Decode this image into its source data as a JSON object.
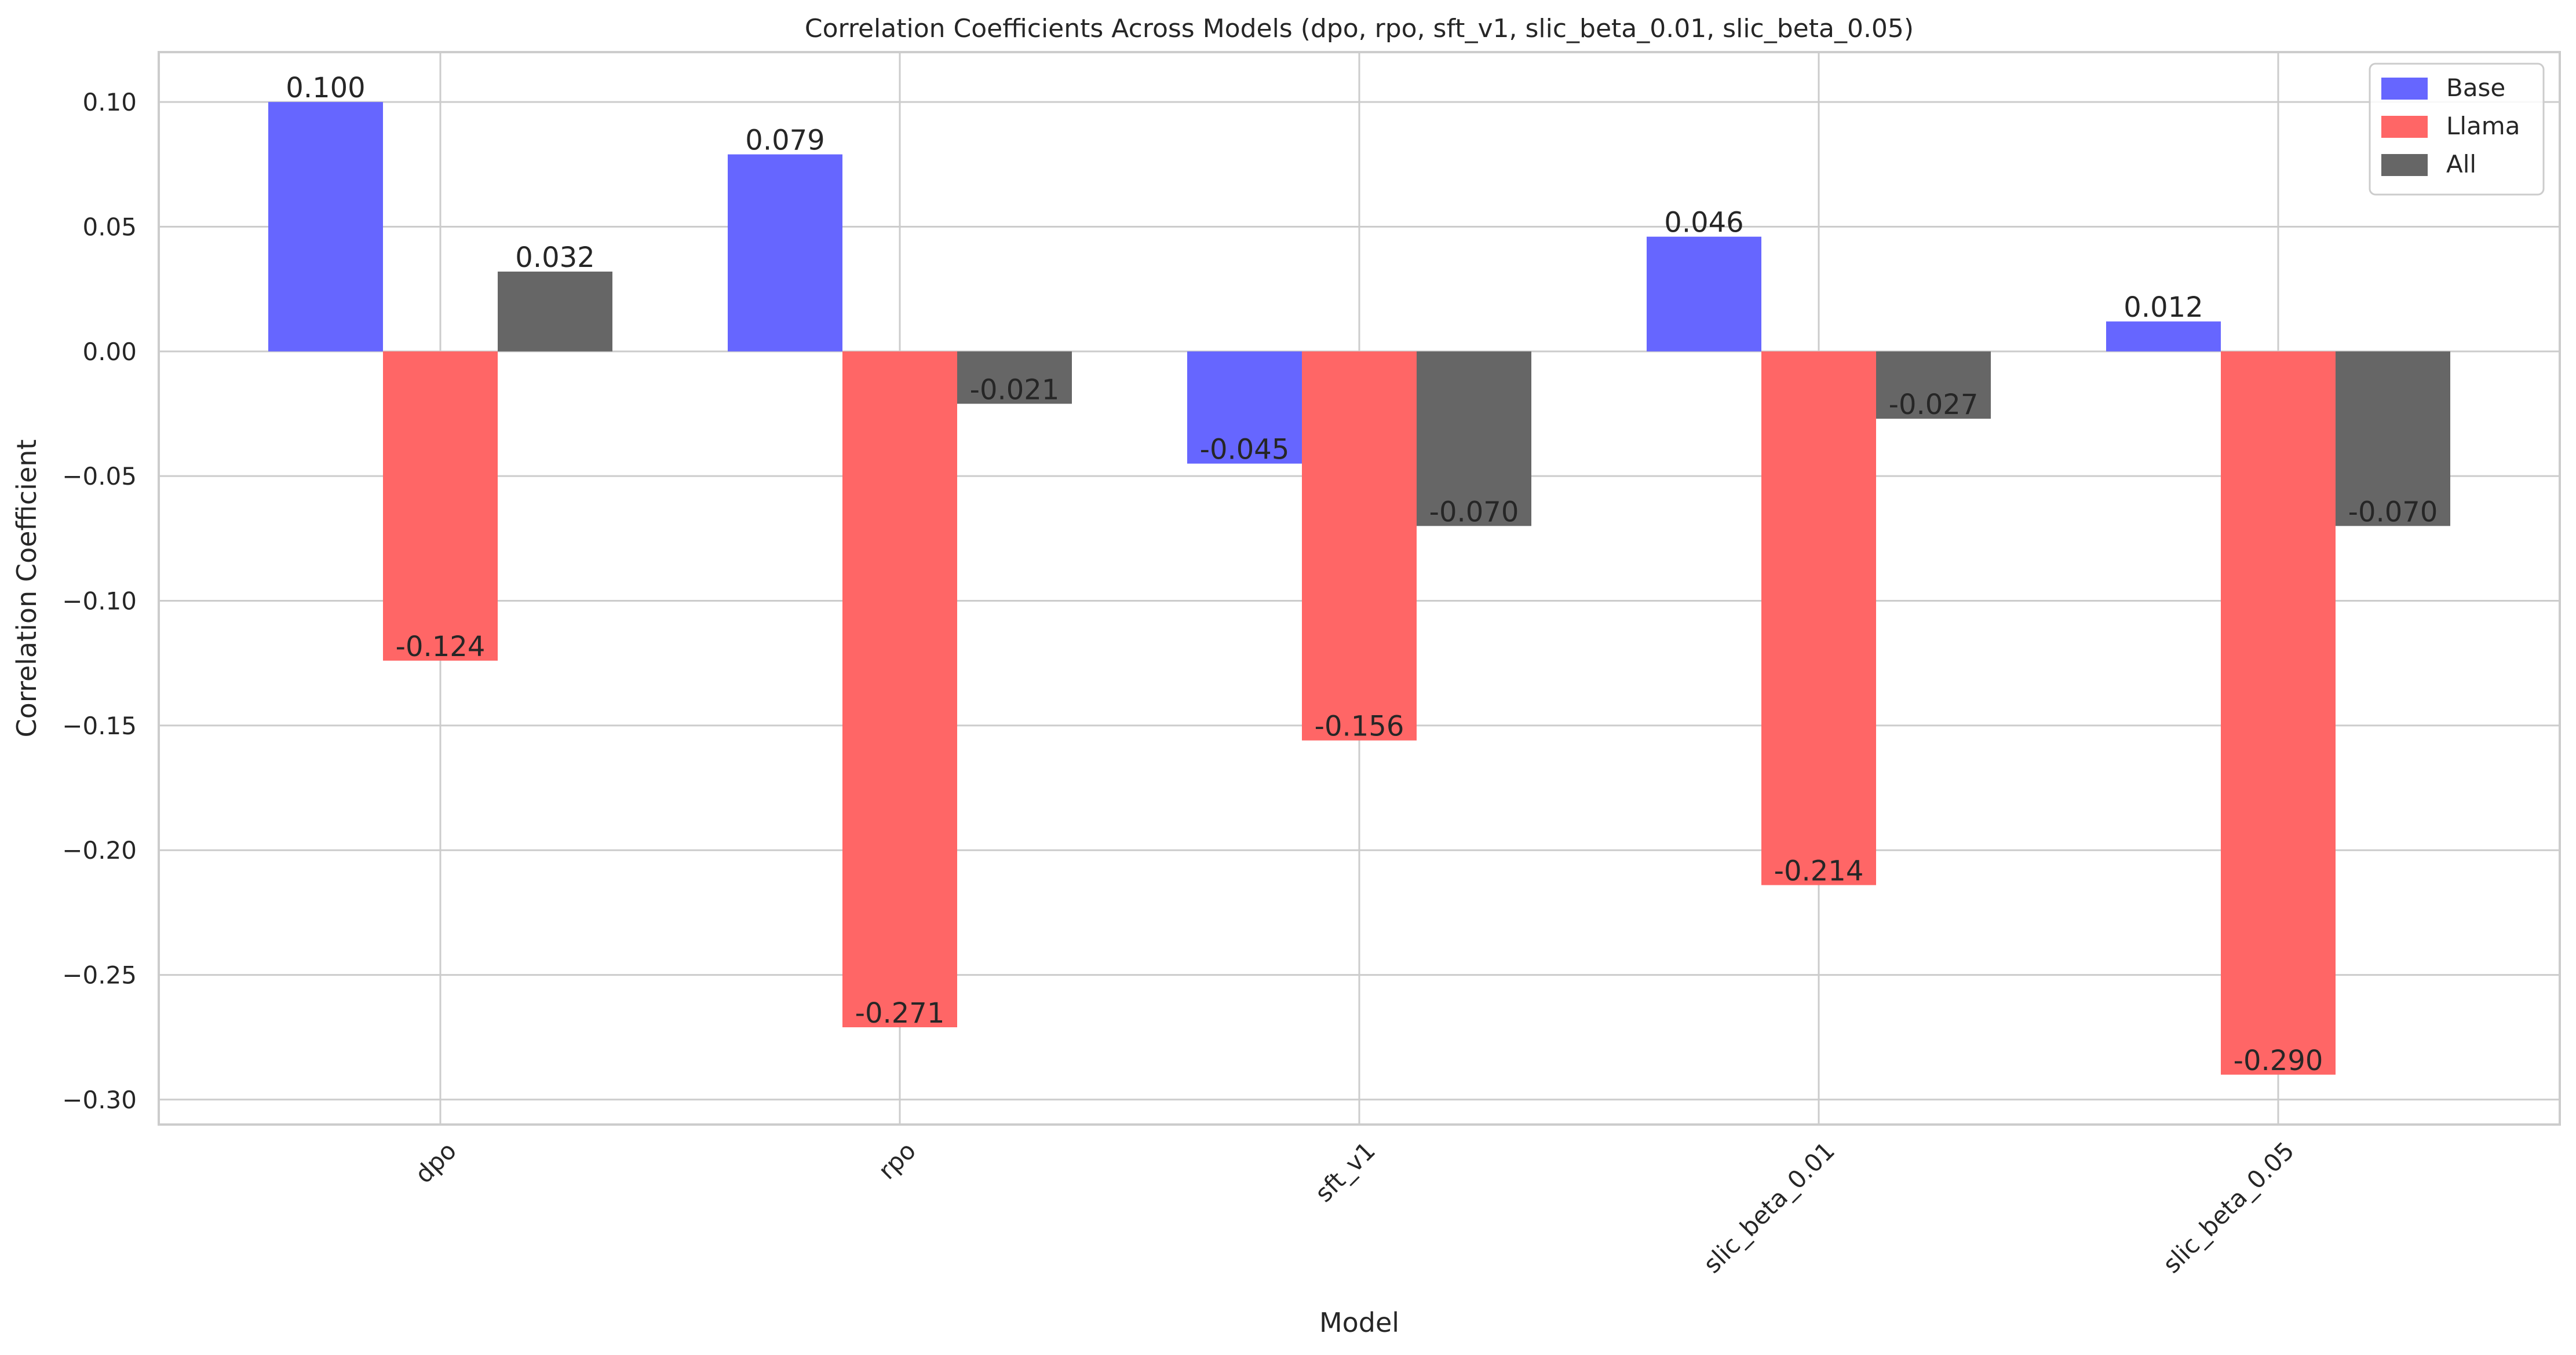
{
  "chart_data": {
    "type": "bar",
    "title": "Correlation Coefficients Across Models (dpo, rpo, sft_v1, slic_beta_0.01, slic_beta_0.05)",
    "xlabel": "Model",
    "ylabel": "Correlation Coefficient",
    "categories": [
      "dpo",
      "rpo",
      "sft_v1",
      "slic_beta_0.01",
      "slic_beta_0.05"
    ],
    "series": [
      {
        "name": "Base",
        "color": "#6666ff",
        "values": [
          0.1,
          0.079,
          -0.045,
          0.046,
          0.012
        ],
        "labels": [
          "0.100",
          "0.079",
          "-0.045",
          "0.046",
          "0.012"
        ]
      },
      {
        "name": "Llama",
        "color": "#ff6666",
        "values": [
          -0.124,
          -0.271,
          -0.156,
          -0.214,
          -0.29
        ],
        "labels": [
          "-0.124",
          "-0.271",
          "-0.156",
          "-0.214",
          "-0.290"
        ]
      },
      {
        "name": "All",
        "color": "#666666",
        "values": [
          0.032,
          -0.021,
          -0.07,
          -0.027,
          -0.07
        ],
        "labels": [
          "0.032",
          "-0.021",
          "-0.070",
          "-0.027",
          "-0.070"
        ]
      }
    ],
    "ylim": [
      -0.31,
      0.12
    ],
    "yticks": [
      0.1,
      0.05,
      0.0,
      -0.05,
      -0.1,
      -0.15,
      -0.2,
      -0.25,
      -0.3
    ],
    "ytick_labels": [
      "0.10",
      "0.05",
      "0.00",
      "−0.05",
      "−0.10",
      "−0.15",
      "−0.20",
      "−0.25",
      "−0.30"
    ],
    "grid": true,
    "legend_position": "top-right",
    "xtick_rotation": "45deg"
  }
}
